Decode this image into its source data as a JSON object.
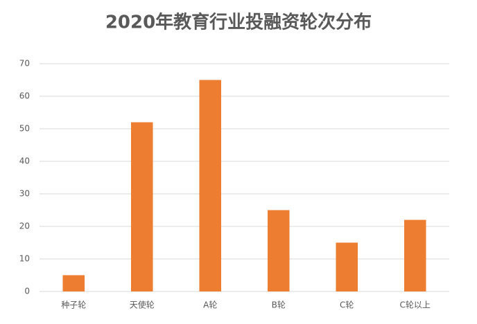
{
  "chart_data": {
    "type": "bar",
    "title": "2020年教育行业投融资轮次分布",
    "categories": [
      "种子轮",
      "天使轮",
      "A轮",
      "B轮",
      "C轮",
      "C轮以上"
    ],
    "values": [
      5,
      52,
      65,
      25,
      15,
      22
    ],
    "color": "#ed7d31",
    "ylim": [
      0,
      70
    ],
    "yticks": [
      0,
      10,
      20,
      30,
      40,
      50,
      60,
      70
    ],
    "grid": true
  }
}
